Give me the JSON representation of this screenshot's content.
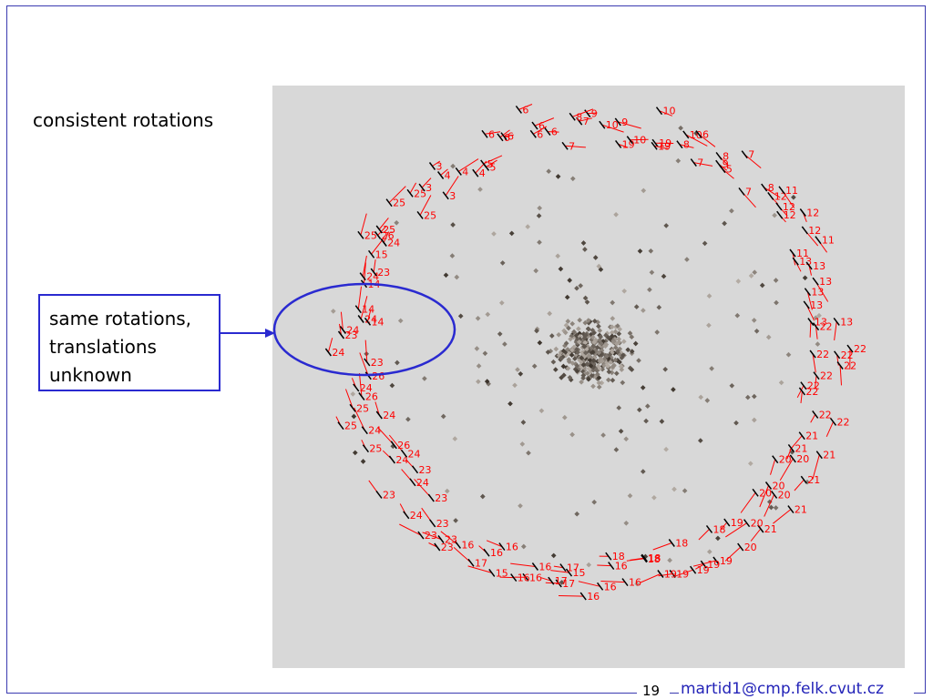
{
  "slide": {
    "heading": "consistent rotations",
    "callout_lines": [
      "same rotations,",
      "translations",
      "unknown"
    ],
    "page_number": "19",
    "footer_email": "martid1@cmp.felk.cvut.cz"
  },
  "colors": {
    "frame": "#3a3ab0",
    "callout": "#2a2ad0",
    "camera": "#ff0000",
    "plot_bg": "#d8d8d8"
  },
  "figure": {
    "camera_labels": [
      "9",
      "10",
      "19",
      "9",
      "10",
      "10",
      "19",
      "19",
      "8",
      "10",
      "6",
      "7",
      "9",
      "8",
      "5",
      "7",
      "7",
      "8",
      "12",
      "11",
      "12",
      "12",
      "12",
      "12",
      "11",
      "11",
      "13",
      "13",
      "13",
      "13",
      "13",
      "13",
      "13",
      "22",
      "22",
      "22",
      "22",
      "22",
      "22",
      "22",
      "22",
      "22",
      "22",
      "21",
      "21",
      "21",
      "20",
      "21",
      "20",
      "20",
      "21",
      "20",
      "20",
      "21",
      "20",
      "20",
      "19",
      "18",
      "19",
      "19",
      "19",
      "18",
      "19",
      "19",
      "18",
      "18",
      "16",
      "18",
      "16",
      "16",
      "16",
      "15",
      "17",
      "17",
      "17",
      "16",
      "16",
      "16",
      "15",
      "16",
      "16",
      "17",
      "16",
      "23",
      "23",
      "23",
      "23",
      "24",
      "23",
      "24",
      "23",
      "23",
      "24",
      "24",
      "26",
      "25",
      "24",
      "25",
      "24",
      "25",
      "26",
      "24",
      "26",
      "23",
      "24",
      "23",
      "24",
      "24",
      "14",
      "14",
      "14",
      "24",
      "23",
      "15",
      "25",
      "24",
      "26",
      "25",
      "25",
      "25",
      "25",
      "3",
      "3",
      "3",
      "4",
      "4",
      "4",
      "5",
      "5",
      "6",
      "6",
      "6",
      "6",
      "6",
      "6",
      "6",
      "7",
      "7",
      "8"
    ]
  }
}
